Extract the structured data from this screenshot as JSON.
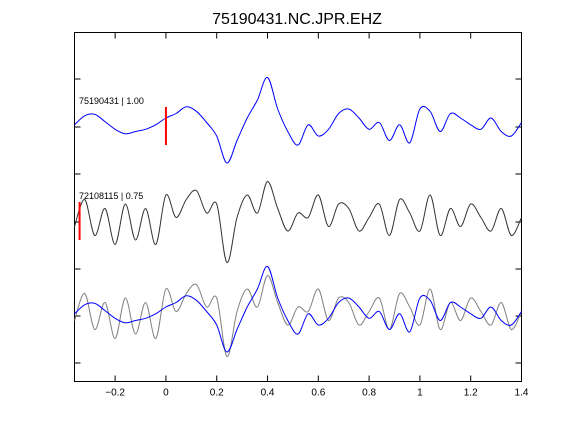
{
  "chart_data": {
    "type": "line",
    "title": "75190431.NC.JPR.EHZ",
    "xlabel": "",
    "ylabel": "",
    "xlim": [
      -0.36,
      1.4
    ],
    "x_ticks": [
      -0.2,
      0,
      0.2,
      0.4,
      0.6,
      0.8,
      1,
      1.2,
      1.4
    ],
    "x_tick_labels": [
      "−0.2",
      "0",
      "0.2",
      "0.4",
      "0.6",
      "0.8",
      "1",
      "1.2",
      "1.4"
    ],
    "grid": false,
    "colors": {
      "master": "#0000ff",
      "neighbor": "#333333",
      "overlay_neighbor": "#808080",
      "pick": "#ff0000"
    },
    "traces": [
      {
        "id": "trace-1",
        "label": "75190431 | 1.00",
        "color": "#0000ff",
        "baseline": 0,
        "pick_x": 0,
        "x": [
          -0.36,
          -0.32,
          -0.28,
          -0.24,
          -0.2,
          -0.16,
          -0.12,
          -0.08,
          -0.04,
          0.0,
          0.04,
          0.08,
          0.12,
          0.16,
          0.2,
          0.24,
          0.28,
          0.32,
          0.36,
          0.4,
          0.44,
          0.48,
          0.52,
          0.56,
          0.6,
          0.64,
          0.68,
          0.72,
          0.76,
          0.8,
          0.84,
          0.88,
          0.92,
          0.96,
          1.0,
          1.04,
          1.08,
          1.12,
          1.16,
          1.2,
          1.24,
          1.28,
          1.32,
          1.36,
          1.4
        ],
        "y": [
          0.05,
          0.25,
          0.28,
          0.12,
          -0.05,
          -0.15,
          -0.1,
          -0.05,
          0.05,
          0.2,
          0.3,
          0.45,
          0.35,
          0.1,
          -0.2,
          -0.8,
          -0.3,
          0.2,
          0.6,
          1.1,
          0.4,
          -0.1,
          -0.4,
          0.05,
          -0.2,
          -0.05,
          0.3,
          0.4,
          0.2,
          -0.05,
          0.1,
          -0.3,
          0.05,
          -0.35,
          0.4,
          0.35,
          -0.1,
          0.3,
          0.2,
          0.05,
          -0.05,
          0.2,
          -0.1,
          -0.2,
          0.1
        ]
      },
      {
        "id": "trace-2",
        "label": "72108115 | 0.75",
        "color": "#333333",
        "baseline": 0,
        "pick_x": -0.34,
        "x": [
          -0.36,
          -0.32,
          -0.28,
          -0.24,
          -0.2,
          -0.16,
          -0.12,
          -0.08,
          -0.04,
          0.0,
          0.04,
          0.08,
          0.12,
          0.16,
          0.2,
          0.24,
          0.28,
          0.32,
          0.36,
          0.4,
          0.44,
          0.48,
          0.52,
          0.56,
          0.6,
          0.64,
          0.68,
          0.72,
          0.76,
          0.8,
          0.84,
          0.88,
          0.92,
          0.96,
          1.0,
          1.04,
          1.08,
          1.12,
          1.16,
          1.2,
          1.24,
          1.28,
          1.32,
          1.36,
          1.4
        ],
        "y": [
          -0.1,
          0.5,
          -0.3,
          0.3,
          -0.5,
          0.4,
          -0.4,
          0.3,
          -0.5,
          0.6,
          0.1,
          0.5,
          0.7,
          0.2,
          0.4,
          -0.9,
          0.1,
          0.6,
          0.2,
          0.9,
          0.3,
          -0.2,
          0.2,
          0.1,
          0.6,
          -0.1,
          0.4,
          0.3,
          -0.2,
          0.1,
          0.4,
          -0.3,
          0.5,
          0.2,
          -0.2,
          0.6,
          -0.3,
          0.3,
          -0.1,
          0.4,
          0.1,
          -0.2,
          0.3,
          -0.3,
          0.1
        ]
      },
      {
        "id": "trace-3",
        "label": "",
        "color": "#0000ff",
        "overlay_color": "#808080",
        "baseline": 0,
        "x": [
          -0.36,
          -0.32,
          -0.28,
          -0.24,
          -0.2,
          -0.16,
          -0.12,
          -0.08,
          -0.04,
          0.0,
          0.04,
          0.08,
          0.12,
          0.16,
          0.2,
          0.24,
          0.28,
          0.32,
          0.36,
          0.4,
          0.44,
          0.48,
          0.52,
          0.56,
          0.6,
          0.64,
          0.68,
          0.72,
          0.76,
          0.8,
          0.84,
          0.88,
          0.92,
          0.96,
          1.0,
          1.04,
          1.08,
          1.12,
          1.16,
          1.2,
          1.24,
          1.28,
          1.32,
          1.36,
          1.4
        ],
        "y": [
          0.05,
          0.25,
          0.28,
          0.12,
          -0.05,
          -0.15,
          -0.1,
          -0.05,
          0.05,
          0.2,
          0.3,
          0.45,
          0.35,
          0.1,
          -0.2,
          -0.8,
          -0.3,
          0.2,
          0.6,
          1.1,
          0.4,
          -0.1,
          -0.4,
          0.05,
          -0.2,
          -0.05,
          0.3,
          0.4,
          0.2,
          -0.05,
          0.1,
          -0.3,
          0.05,
          -0.35,
          0.4,
          0.35,
          -0.1,
          0.3,
          0.2,
          0.05,
          -0.05,
          0.2,
          -0.1,
          -0.2,
          0.1
        ],
        "overlay_y": [
          -0.1,
          0.5,
          -0.3,
          0.3,
          -0.5,
          0.4,
          -0.4,
          0.3,
          -0.5,
          0.6,
          0.1,
          0.5,
          0.7,
          0.2,
          0.4,
          -0.9,
          0.1,
          0.6,
          0.2,
          0.9,
          0.3,
          -0.2,
          0.2,
          0.1,
          0.6,
          -0.1,
          0.4,
          0.3,
          -0.2,
          0.1,
          0.4,
          -0.3,
          0.5,
          0.2,
          -0.2,
          0.6,
          -0.3,
          0.3,
          -0.1,
          0.4,
          0.1,
          -0.2,
          0.3,
          -0.3,
          0.1
        ]
      }
    ]
  }
}
